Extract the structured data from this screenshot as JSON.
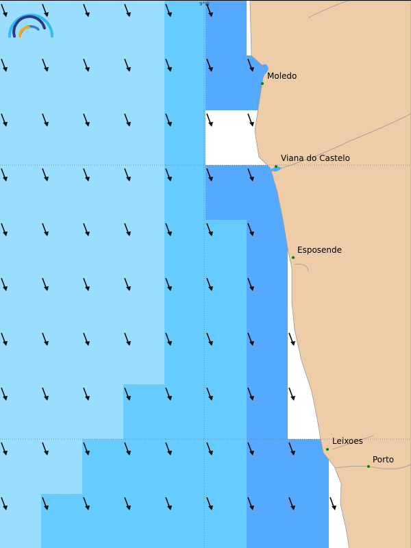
{
  "map": {
    "graticule_label": "9°W",
    "colors": {
      "light": "#99ddff",
      "mid": "#66ccff",
      "dark": "#55aaff",
      "land": "#eecca8",
      "coast": "#999999",
      "city_dot": "#008800"
    },
    "cell_grid": [
      "LLLLMDW...",
      "LLLLMDD...",
      "LLLLMWW...",
      "LLLLMDD...",
      "LLLLMMDW..",
      "LLLLMMDW..",
      "LLLLMMDW..",
      "LLLMMMDW..",
      "LLMMMMDDW.",
      "LMMMMMDDW."
    ],
    "arrow_direction": "south-southeast",
    "cities": [
      {
        "name": "Moledo"
      },
      {
        "name": "Viana do Castelo"
      },
      {
        "name": "Esposende"
      },
      {
        "name": "Leixoes"
      },
      {
        "name": "Porto"
      }
    ]
  }
}
